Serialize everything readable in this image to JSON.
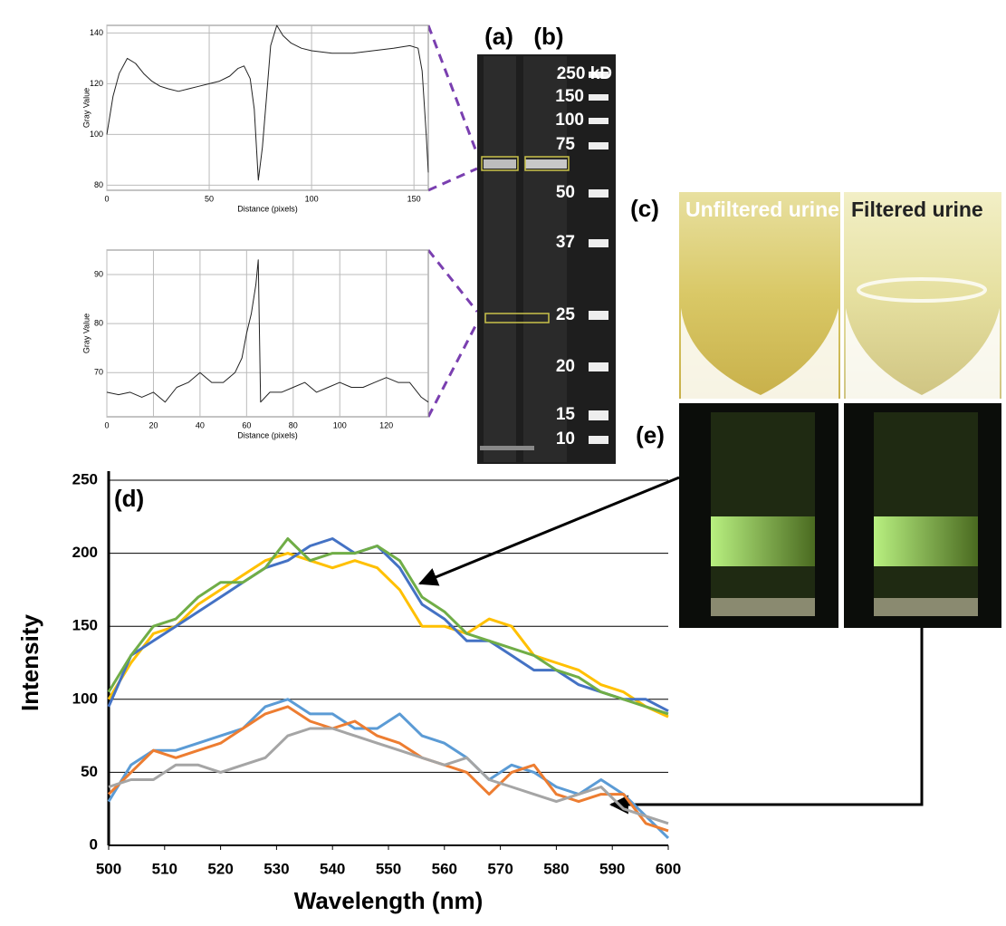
{
  "chart_data": [
    {
      "type": "line",
      "x_label": "Distance (pixels)",
      "y_label": "Gray Value",
      "grid": "both",
      "xlim": [
        0,
        157
      ],
      "xticks": [
        0,
        50,
        100,
        150
      ],
      "ylim": [
        78,
        143
      ],
      "yticks": [
        80,
        100,
        120,
        140
      ],
      "x": [
        0,
        3,
        6,
        10,
        14,
        18,
        22,
        26,
        30,
        35,
        40,
        45,
        50,
        55,
        60,
        64,
        67,
        70,
        72,
        74,
        76,
        78,
        80,
        83,
        86,
        90,
        95,
        100,
        110,
        120,
        130,
        140,
        148,
        152,
        154,
        156,
        157
      ],
      "series": [
        {
          "color": "#222222",
          "values": [
            100,
            115,
            124,
            130,
            128,
            124,
            121,
            119,
            118,
            117,
            118,
            119,
            120,
            121,
            123,
            126,
            127,
            122,
            110,
            82,
            95,
            115,
            135,
            143,
            139,
            136,
            134,
            133,
            132,
            132,
            133,
            134,
            135,
            134,
            125,
            100,
            85
          ]
        }
      ]
    },
    {
      "type": "line",
      "x_label": "Distance (pixels)",
      "y_label": "Gray Value",
      "grid": "both",
      "xlim": [
        0,
        138
      ],
      "xticks": [
        0,
        20,
        40,
        60,
        80,
        100,
        120
      ],
      "ylim": [
        61,
        95
      ],
      "yticks": [
        70,
        80,
        90
      ],
      "x": [
        0,
        5,
        10,
        15,
        20,
        25,
        30,
        35,
        40,
        45,
        50,
        55,
        58,
        60,
        62,
        64,
        65,
        66,
        68,
        70,
        75,
        80,
        85,
        90,
        95,
        100,
        105,
        110,
        115,
        120,
        125,
        130,
        135,
        138
      ],
      "series": [
        {
          "color": "#222222",
          "values": [
            66,
            65.5,
            66,
            65,
            66,
            64,
            67,
            68,
            70,
            68,
            68,
            70,
            73,
            78,
            82,
            88,
            93,
            64,
            65,
            66,
            66,
            67,
            68,
            66,
            67,
            68,
            67,
            67,
            68,
            69,
            68,
            68,
            65,
            64
          ]
        }
      ]
    },
    {
      "type": "line",
      "panel_label": "(d)",
      "x_label": "Wavelength (nm)",
      "y_label": "Intensity",
      "grid": "y",
      "xlim": [
        500,
        600
      ],
      "xticks": [
        500,
        510,
        520,
        530,
        540,
        550,
        560,
        570,
        580,
        590,
        600
      ],
      "ylim": [
        0,
        250
      ],
      "yticks": [
        0,
        50,
        100,
        150,
        200,
        250
      ],
      "x": [
        500,
        504,
        508,
        512,
        516,
        520,
        524,
        528,
        532,
        536,
        540,
        544,
        548,
        552,
        556,
        560,
        564,
        568,
        572,
        576,
        580,
        584,
        588,
        592,
        596,
        600
      ],
      "series": [
        {
          "color": "#FFC000",
          "values": [
            100,
            125,
            145,
            150,
            165,
            175,
            185,
            195,
            200,
            195,
            190,
            195,
            190,
            175,
            150,
            150,
            145,
            155,
            150,
            130,
            125,
            120,
            110,
            105,
            95,
            88
          ]
        },
        {
          "color": "#4472C4",
          "values": [
            95,
            130,
            140,
            150,
            160,
            170,
            180,
            190,
            195,
            205,
            210,
            200,
            205,
            190,
            165,
            155,
            140,
            140,
            130,
            120,
            120,
            110,
            105,
            100,
            100,
            92
          ]
        },
        {
          "color": "#70AD47",
          "values": [
            105,
            130,
            150,
            155,
            170,
            180,
            180,
            190,
            210,
            195,
            200,
            200,
            205,
            195,
            170,
            160,
            145,
            140,
            135,
            130,
            120,
            115,
            105,
            100,
            95,
            90
          ]
        },
        {
          "color": "#5B9BD5",
          "values": [
            30,
            55,
            65,
            65,
            70,
            75,
            80,
            95,
            100,
            90,
            90,
            80,
            80,
            90,
            75,
            70,
            60,
            45,
            55,
            50,
            40,
            35,
            45,
            35,
            20,
            5
          ]
        },
        {
          "color": "#ED7D31",
          "values": [
            35,
            50,
            65,
            60,
            65,
            70,
            80,
            90,
            95,
            85,
            80,
            85,
            75,
            70,
            60,
            55,
            50,
            35,
            50,
            55,
            35,
            30,
            35,
            35,
            15,
            10
          ]
        },
        {
          "color": "#A5A5A5",
          "values": [
            40,
            45,
            45,
            55,
            55,
            50,
            55,
            60,
            75,
            80,
            80,
            75,
            70,
            65,
            60,
            55,
            60,
            45,
            40,
            35,
            30,
            35,
            40,
            25,
            20,
            15
          ]
        }
      ]
    }
  ],
  "figure": {
    "panel_a": "(a)",
    "panel_b": "(b)",
    "panel_c": "(c)",
    "panel_e": "(e)",
    "markers": [
      "250 kD",
      "150",
      "100",
      "75",
      "50",
      "37",
      "25",
      "20",
      "15",
      "10"
    ],
    "tube_1": "Unfiltered urine",
    "tube_2": "Filtered urine"
  }
}
